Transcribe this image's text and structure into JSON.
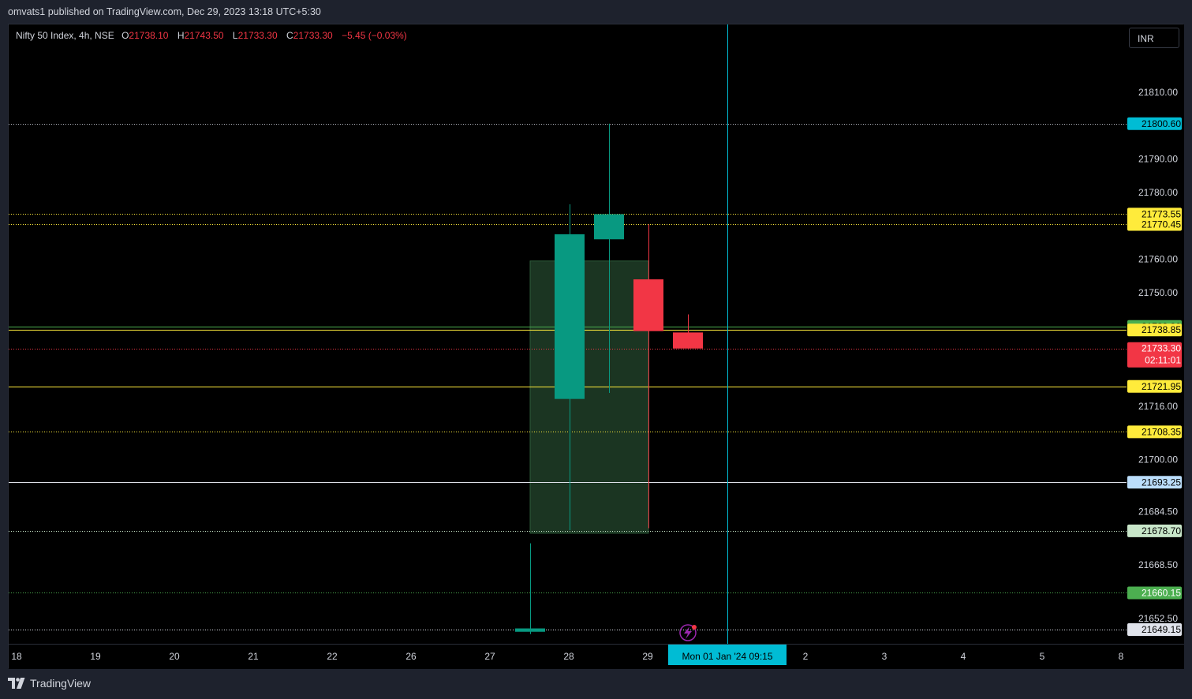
{
  "publisher": "omvats1 published on TradingView.com, Dec 29, 2023 13:18 UTC+5:30",
  "legend": {
    "symbol": "Nifty 50 Index, 4h, NSE",
    "o_key": "O",
    "o": "21738.10",
    "h_key": "H",
    "h": "21743.50",
    "l_key": "L",
    "l": "21733.30",
    "c_key": "C",
    "c": "21733.30",
    "change": "−5.45 (−0.03%)"
  },
  "currency": "INR",
  "footer": {
    "brand": "TradingView",
    "logo_icon": "tradingview-logo-icon"
  },
  "flash_icon": "lightning-icon",
  "countdown": "02:11:01",
  "crosshair_label": "Mon 01 Jan '24   09:15",
  "chart_data": {
    "type": "candlestick",
    "title": "Nifty 50 Index, 4h, NSE",
    "ylim": [
      21647.5,
      21818.5
    ],
    "y_ticks": [
      "21810.00",
      "21790.00",
      "21780.00",
      "21760.00",
      "21750.00",
      "21716.00",
      "21700.00",
      "21684.50",
      "21668.50",
      "21652.50"
    ],
    "x_ticks": [
      "18",
      "19",
      "20",
      "21",
      "22",
      "26",
      "27",
      "28",
      "29",
      "2",
      "3",
      "4",
      "5",
      "8"
    ],
    "candles": [
      {
        "open": 21648.5,
        "high": 21675.0,
        "low": 21647.8,
        "close": 21649.5
      },
      {
        "open": 21718.2,
        "high": 21776.5,
        "low": 21678.9,
        "close": 21767.5
      },
      {
        "open": 21766.0,
        "high": 21800.6,
        "low": 21720.0,
        "close": 21773.5
      },
      {
        "open": 21754.0,
        "high": 21770.5,
        "low": 21679.5,
        "close": 21738.5
      },
      {
        "open": 21738.1,
        "high": 21743.5,
        "low": 21733.3,
        "close": 21733.3
      }
    ],
    "zone": {
      "top": 21759.5,
      "bottom": 21678.0,
      "color": "#1e3b26"
    },
    "levels": [
      {
        "value": 21800.6,
        "label": "21800.60",
        "line_color": "#b2b5be",
        "style": "dotted",
        "label_bg": "#00bcd4",
        "label_fg": "#000000"
      },
      {
        "value": 21773.55,
        "label": "21773.55",
        "line_color": "#ffeb3b",
        "style": "dotted",
        "label_bg": "#ffeb3b",
        "label_fg": "#000000"
      },
      {
        "value": 21770.45,
        "label": "21770.45",
        "line_color": "#ffeb3b",
        "style": "dotted",
        "label_bg": "#ffeb3b",
        "label_fg": "#000000"
      },
      {
        "value": 21739.9,
        "label": "21739.90",
        "line_color": "#4caf50",
        "style": "solid",
        "label_bg": "#4caf50",
        "label_fg": "#000000"
      },
      {
        "value": 21738.85,
        "label": "21738.85",
        "line_color": "#ffeb3b",
        "style": "solid",
        "label_bg": "#ffeb3b",
        "label_fg": "#000000"
      },
      {
        "value": 21733.3,
        "label": "21733.30",
        "line_color": "#f23645",
        "style": "dotted",
        "label_bg": "#f23645",
        "label_fg": "#ffffff"
      },
      {
        "value": 21721.95,
        "label": "21721.95",
        "line_color": "#ffeb3b",
        "style": "solid",
        "label_bg": "#ffeb3b",
        "label_fg": "#000000"
      },
      {
        "value": 21708.35,
        "label": "21708.35",
        "line_color": "#ffeb3b",
        "style": "dotted",
        "label_bg": "#ffeb3b",
        "label_fg": "#000000"
      },
      {
        "value": 21693.25,
        "label": "21693.25",
        "line_color": "#e0e3eb",
        "style": "solid",
        "label_bg": "#bbdefb",
        "label_fg": "#000000"
      },
      {
        "value": 21678.7,
        "label": "21678.70",
        "line_color": "#c8e6c9",
        "style": "dotted",
        "label_bg": "#c8e6c9",
        "label_fg": "#000000"
      },
      {
        "value": 21660.15,
        "label": "21660.15",
        "line_color": "#4caf50",
        "style": "dotted",
        "label_bg": "#4caf50",
        "label_fg": "#ffffff"
      },
      {
        "value": 21649.15,
        "label": "21649.15",
        "line_color": "#e0e3eb",
        "style": "dotted",
        "label_bg": "#e0e3eb",
        "label_fg": "#000000"
      }
    ],
    "colors": {
      "up": "#089981",
      "down": "#f23645",
      "crosshair": "#00bcd4",
      "background": "#000000"
    }
  }
}
